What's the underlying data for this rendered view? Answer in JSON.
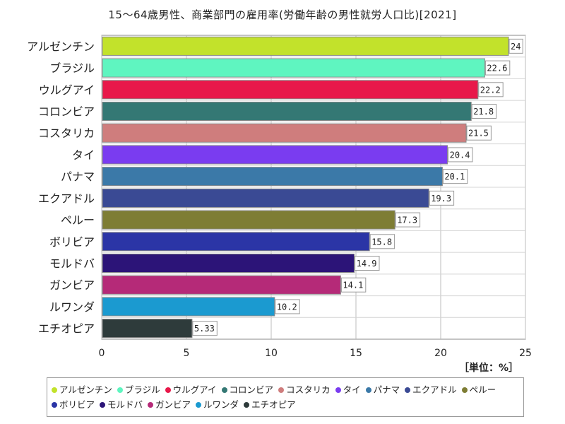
{
  "chart_data": {
    "type": "bar",
    "orientation": "horizontal",
    "title": "15～64歳男性、商業部門の雇用率(労働年齢の男性就労人口比)[2021]",
    "unit_label": "［単位：%］",
    "categories": [
      "アルゼンチン",
      "ブラジル",
      "ウルグアイ",
      "コロンビア",
      "コスタリカ",
      "タイ",
      "パナマ",
      "エクアドル",
      "ペルー",
      "ボリビア",
      "モルドバ",
      "ガンビア",
      "ルワンダ",
      "エチオピア"
    ],
    "values": [
      24,
      22.6,
      22.2,
      21.8,
      21.5,
      20.4,
      20.1,
      19.3,
      17.3,
      15.8,
      14.9,
      14.1,
      10.2,
      5.33
    ],
    "value_labels": [
      "24",
      "22.6",
      "22.2",
      "21.8",
      "21.5",
      "20.4",
      "20.1",
      "19.3",
      "17.3",
      "15.8",
      "14.9",
      "14.1",
      "10.2",
      "5.33"
    ],
    "colors": [
      "#c2e22b",
      "#5ff5c0",
      "#e8184a",
      "#347874",
      "#cf7d7d",
      "#7a3cf0",
      "#3b79a8",
      "#3a4a94",
      "#7e7d34",
      "#2b35a6",
      "#2c1478",
      "#b52a78",
      "#1b9ad0",
      "#2e3b3b"
    ],
    "xlim": [
      0,
      25
    ],
    "xticks": [
      "0",
      "5",
      "10",
      "15",
      "20",
      "25"
    ],
    "xtick_values": [
      0,
      5,
      10,
      15,
      20,
      25
    ],
    "grid": true,
    "legend_placement": "bottom"
  }
}
